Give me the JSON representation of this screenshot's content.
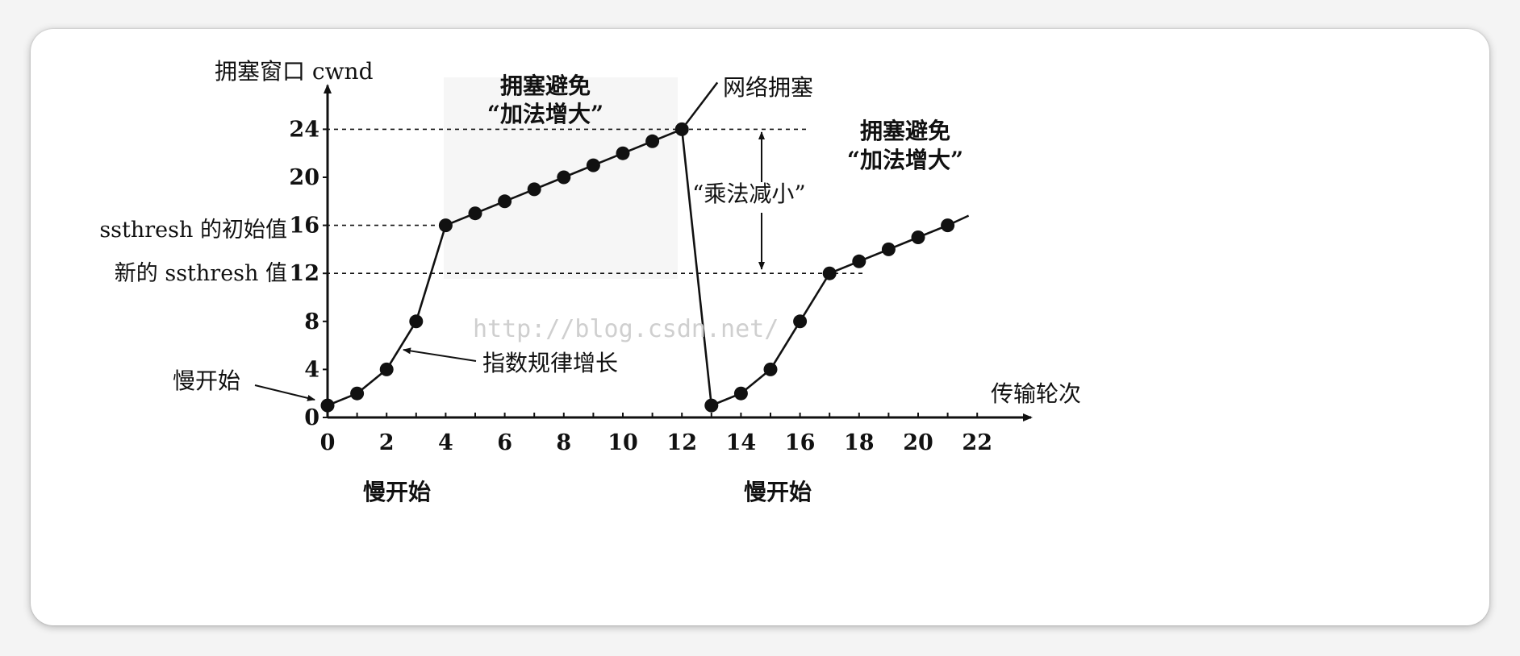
{
  "chart_data": {
    "type": "line",
    "ylabel": "拥塞窗口 cwnd",
    "xlabel": "传输轮次",
    "x_ticks": [
      "0",
      "2",
      "4",
      "6",
      "8",
      "10",
      "12",
      "14",
      "16",
      "18",
      "20",
      "22"
    ],
    "y_ticks": [
      "0",
      "4",
      "8",
      "12",
      "16",
      "20",
      "24"
    ],
    "xlim": [
      0,
      23
    ],
    "ylim": [
      0,
      27
    ],
    "series": [
      {
        "x": [
          0,
          1,
          2,
          3,
          4,
          5,
          6,
          7,
          8,
          9,
          10,
          11,
          12,
          13,
          14,
          15,
          16,
          17,
          18,
          19,
          20,
          21
        ],
        "y": [
          1,
          2,
          4,
          8,
          16,
          17,
          18,
          19,
          20,
          21,
          22,
          23,
          24,
          1,
          2,
          4,
          8,
          12,
          13,
          14,
          15,
          16
        ]
      }
    ],
    "reference_lines": [
      {
        "y": 24,
        "x_range": [
          0,
          16
        ]
      },
      {
        "y": 16,
        "x_range": [
          0,
          4
        ]
      },
      {
        "y": 12,
        "x_range": [
          0,
          18
        ]
      }
    ],
    "annotations": {
      "ssthresh_initial": "ssthresh 的初始值",
      "ssthresh_new": "新的 ssthresh 值",
      "slow_start_point": "慢开始",
      "exponential": "指数规律增长",
      "ca1_line1": "拥塞避免",
      "ca1_line2": "“加法增大”",
      "congestion": "网络拥塞",
      "multiplicative": "“乘法减小”",
      "ca2_line1": "拥塞避免",
      "ca2_line2": "“加法增大”",
      "slow_start_1": "慢开始",
      "slow_start_2": "慢开始",
      "watermark": "http://blog.csdn.net/"
    }
  }
}
